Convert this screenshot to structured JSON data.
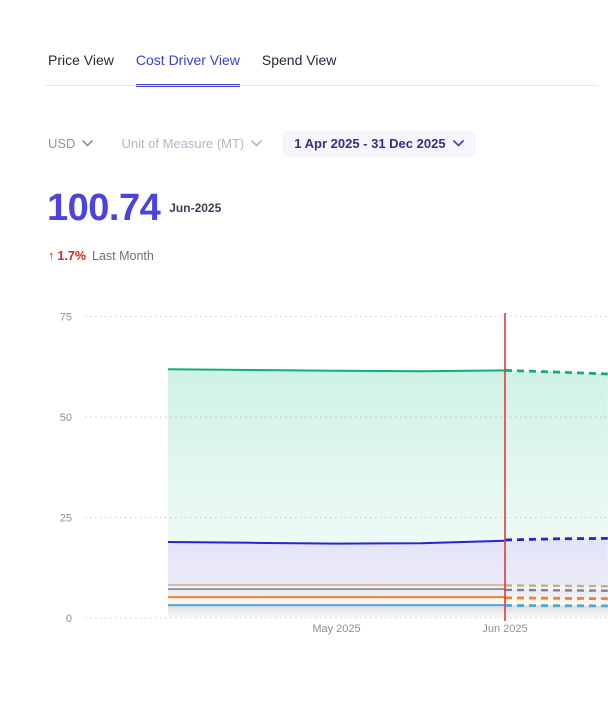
{
  "tabs": [
    {
      "label": "Price View",
      "active": false
    },
    {
      "label": "Cost Driver View",
      "active": true
    },
    {
      "label": "Spend View",
      "active": false
    }
  ],
  "filters": {
    "currency": "USD",
    "unit_of_measure": "Unit of Measure (MT)",
    "date_range": "1 Apr 2025 - 31 Dec 2025"
  },
  "kpi": {
    "value": "100.74",
    "period": "Jun-2025",
    "change_pct": "1.7%",
    "change_direction": "up",
    "change_label": "Last Month",
    "value_color": "#4a43dd",
    "change_color": "#dc2626"
  },
  "chart_data": {
    "type": "area",
    "title": "",
    "xlabel": "",
    "ylabel": "",
    "grid": "dotted-horizontal",
    "legend": "none",
    "ylim": [
      0,
      78
    ],
    "y_ticks": [
      0,
      25,
      50,
      75
    ],
    "x_labels": [
      {
        "text": "May 2025",
        "m": 1
      },
      {
        "text": "Jun 2025",
        "m": 2
      }
    ],
    "marker": {
      "m": 2,
      "label": "Jun 2025 (current month)",
      "color": "#e53935"
    },
    "series": [
      {
        "id": "emerald-top-line",
        "color": "#0fae82",
        "width": 2,
        "fill_top": "rgba(16,185,129,0.20)",
        "fill_bottom": "rgba(16,185,129,0.07)",
        "solid": [
          [
            0,
            61.9
          ],
          [
            0.5,
            61.7
          ],
          [
            1,
            61.5
          ],
          [
            1.5,
            61.4
          ],
          [
            2,
            61.6
          ]
        ],
        "forecast": [
          [
            2,
            61.6
          ],
          [
            2.3,
            61.2
          ],
          [
            2.61,
            60.7
          ]
        ]
      },
      {
        "id": "blue-line",
        "color": "#2626cf",
        "width": 2,
        "fill_top": "rgba(70,70,205,0.15)",
        "fill_bottom": "rgba(70,70,205,0.11)",
        "solid": [
          [
            0,
            18.9
          ],
          [
            0.5,
            18.7
          ],
          [
            1,
            18.5
          ],
          [
            1.5,
            18.6
          ],
          [
            2,
            19.2
          ]
        ],
        "forecast": [
          [
            2,
            19.4
          ],
          [
            2.3,
            19.7
          ],
          [
            2.61,
            19.8
          ]
        ]
      },
      {
        "id": "tan-line",
        "color": "#c9ac8c",
        "width": 1.6,
        "fill_top": "rgba(190,170,140,0.16)",
        "fill_bottom": "rgba(190,170,140,0.12)",
        "solid": [
          [
            0,
            8.2
          ],
          [
            2,
            8.2
          ]
        ],
        "forecast": [
          [
            2,
            8.1
          ],
          [
            2.61,
            7.9
          ]
        ]
      },
      {
        "id": "slate-line",
        "color": "#80809a",
        "width": 1.6,
        "fill_top": "rgba(110,110,160,0.14)",
        "fill_bottom": "rgba(110,110,160,0.10)",
        "solid": [
          [
            0,
            7.2
          ],
          [
            2,
            7.2
          ]
        ],
        "forecast": [
          [
            2,
            7.0
          ],
          [
            2.61,
            6.8
          ]
        ]
      },
      {
        "id": "orange-line",
        "color": "#e2882f",
        "width": 2,
        "fill_top": "rgba(226,136,47,0.10)",
        "fill_bottom": "rgba(226,136,47,0.06)",
        "solid": [
          [
            0,
            5.2
          ],
          [
            2,
            5.2
          ]
        ],
        "forecast": [
          [
            2,
            5.0
          ],
          [
            2.61,
            4.8
          ]
        ]
      },
      {
        "id": "sky-line",
        "color": "#4da8d4",
        "width": 2,
        "fill_top": "rgba(105,120,130,0.26)",
        "fill_bottom": "rgba(105,120,130,0.03)",
        "solid": [
          [
            0,
            3.2
          ],
          [
            2,
            3.2
          ]
        ],
        "forecast": [
          [
            2,
            3.1
          ],
          [
            2.61,
            3.0
          ]
        ]
      }
    ]
  }
}
